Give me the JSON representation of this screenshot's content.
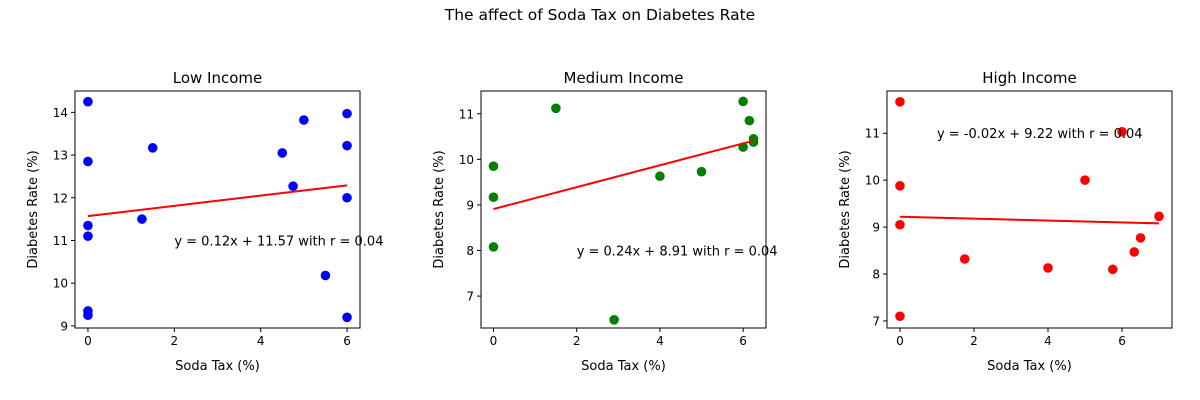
{
  "figure": {
    "suptitle": "The affect of Soda Tax on Diabetes Rate"
  },
  "chart_data": [
    {
      "type": "scatter",
      "title": "Low Income",
      "xlabel": "Soda Tax (%)",
      "ylabel": "Diabetes Rate (%)",
      "xlim": [
        -0.3,
        6.3
      ],
      "ylim": [
        8.95,
        14.5
      ],
      "xticks": [
        0,
        2,
        4,
        6
      ],
      "yticks": [
        9,
        10,
        11,
        12,
        13,
        14
      ],
      "color": "#0000ff",
      "line_color": "#ff0000",
      "grid": false,
      "points": [
        {
          "x": 0,
          "y": 14.25
        },
        {
          "x": 0,
          "y": 12.85
        },
        {
          "x": 0,
          "y": 11.35
        },
        {
          "x": 0,
          "y": 11.1
        },
        {
          "x": 0,
          "y": 9.35
        },
        {
          "x": 0,
          "y": 9.25
        },
        {
          "x": 1.25,
          "y": 11.5
        },
        {
          "x": 1.5,
          "y": 13.17
        },
        {
          "x": 4.5,
          "y": 13.05
        },
        {
          "x": 4.75,
          "y": 12.27
        },
        {
          "x": 5.0,
          "y": 13.82
        },
        {
          "x": 5.5,
          "y": 10.18
        },
        {
          "x": 6.0,
          "y": 13.97
        },
        {
          "x": 6.0,
          "y": 13.22
        },
        {
          "x": 6.0,
          "y": 12.0
        },
        {
          "x": 6.0,
          "y": 9.2
        }
      ],
      "fit": {
        "slope": 0.12,
        "intercept": 11.57,
        "x_range": [
          0,
          6
        ]
      },
      "annotation": {
        "text": "y = 0.12x + 11.57 with r = 0.04",
        "x": 2.0,
        "y": 11.0
      }
    },
    {
      "type": "scatter",
      "title": "Medium Income",
      "xlabel": "Soda Tax (%)",
      "ylabel": "Diabetes Rate (%)",
      "xlim": [
        -0.3,
        6.55
      ],
      "ylim": [
        6.3,
        11.5
      ],
      "xticks": [
        0,
        2,
        4,
        6
      ],
      "yticks": [
        7,
        8,
        9,
        10,
        11
      ],
      "color": "#008000",
      "line_color": "#ff0000",
      "grid": false,
      "points": [
        {
          "x": 0,
          "y": 9.85
        },
        {
          "x": 0,
          "y": 9.17
        },
        {
          "x": 0,
          "y": 8.08
        },
        {
          "x": 1.5,
          "y": 11.12
        },
        {
          "x": 2.9,
          "y": 6.48
        },
        {
          "x": 4.0,
          "y": 9.63
        },
        {
          "x": 5.0,
          "y": 9.73
        },
        {
          "x": 6.0,
          "y": 11.27
        },
        {
          "x": 6.0,
          "y": 10.27
        },
        {
          "x": 6.15,
          "y": 10.85
        },
        {
          "x": 6.25,
          "y": 10.45
        },
        {
          "x": 6.25,
          "y": 10.38
        }
      ],
      "fit": {
        "slope": 0.24,
        "intercept": 8.91,
        "x_range": [
          0,
          6.25
        ]
      },
      "annotation": {
        "text": "y = 0.24x + 8.91 with r = 0.04",
        "x": 2.0,
        "y": 8.0
      }
    },
    {
      "type": "scatter",
      "title": "High Income",
      "xlabel": "Soda Tax (%)",
      "ylabel": "Diabetes Rate (%)",
      "xlim": [
        -0.35,
        7.35
      ],
      "ylim": [
        6.85,
        11.9
      ],
      "xticks": [
        0,
        2,
        4,
        6
      ],
      "yticks": [
        7,
        8,
        9,
        10,
        11
      ],
      "color": "#ff0000",
      "line_color": "#ff0000",
      "grid": false,
      "points": [
        {
          "x": 0,
          "y": 11.67
        },
        {
          "x": 0,
          "y": 9.88
        },
        {
          "x": 0,
          "y": 9.05
        },
        {
          "x": 0,
          "y": 7.1
        },
        {
          "x": 1.75,
          "y": 8.32
        },
        {
          "x": 4.0,
          "y": 8.13
        },
        {
          "x": 5.0,
          "y": 10.0
        },
        {
          "x": 5.75,
          "y": 8.1
        },
        {
          "x": 6.0,
          "y": 11.03
        },
        {
          "x": 6.33,
          "y": 8.47
        },
        {
          "x": 6.5,
          "y": 8.77
        },
        {
          "x": 7.0,
          "y": 9.23
        }
      ],
      "fit": {
        "slope": -0.02,
        "intercept": 9.22,
        "x_range": [
          0,
          7
        ]
      },
      "annotation": {
        "text": "y = -0.02x + 9.22 with r = 0.04",
        "x": 1.0,
        "y": 11.0
      }
    }
  ]
}
